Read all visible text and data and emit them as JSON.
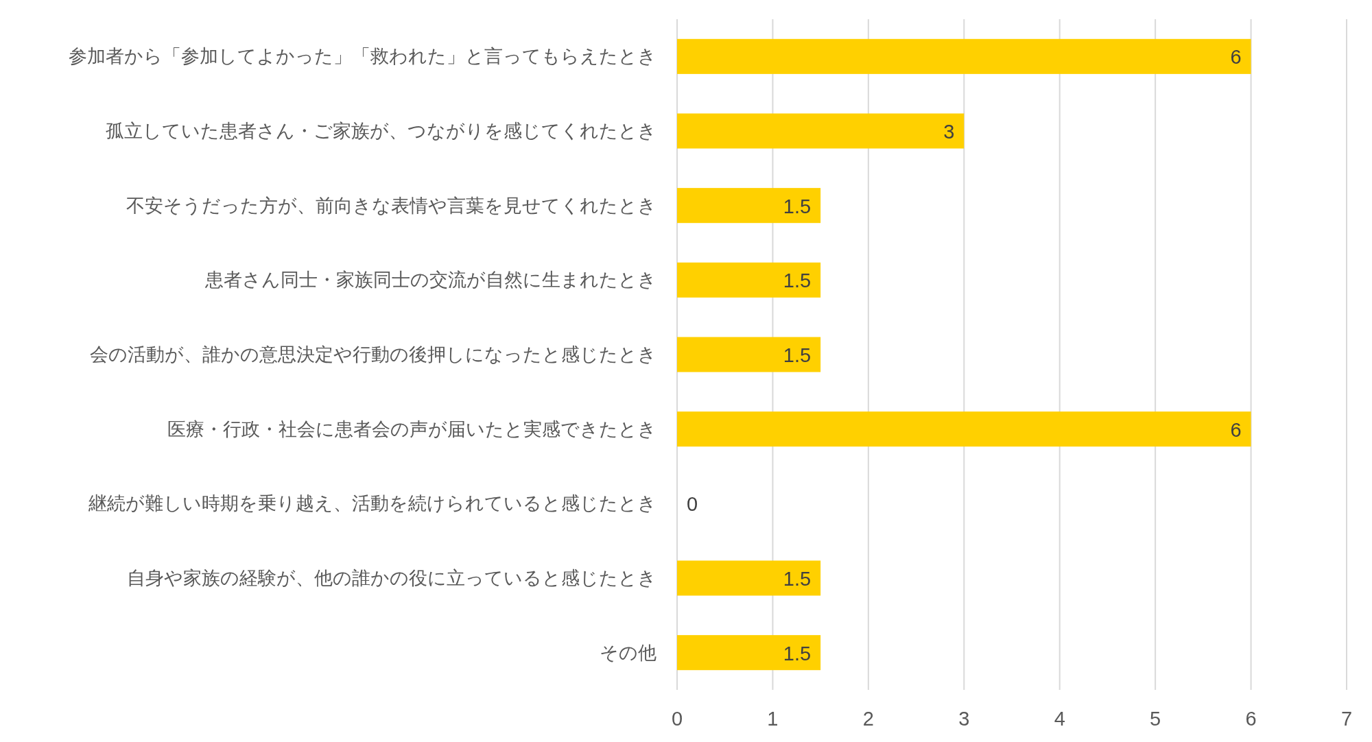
{
  "chart_data": {
    "type": "bar",
    "orientation": "horizontal",
    "categories": [
      "参加者から「参加してよかった」「救われた」と言ってもらえたとき",
      "孤立していた患者さん・ご家族が、つながりを感じてくれたとき",
      "不安そうだった方が、前向きな表情や言葉を見せてくれたとき",
      "患者さん同士・家族同士の交流が自然に生まれたとき",
      "会の活動が、誰かの意思決定や行動の後押しになったと感じたとき",
      "医療・行政・社会に患者会の声が届いたと実感できたとき",
      "継続が難しい時期を乗り越え、活動を続けられていると感じたとき",
      "自身や家族の経験が、他の誰かの役に立っていると感じたとき",
      "その他"
    ],
    "values": [
      6,
      3,
      1.5,
      1.5,
      1.5,
      6,
      0,
      1.5,
      1.5
    ],
    "color": "#ffd000",
    "xlim": [
      0,
      7
    ],
    "xticks": [
      0,
      1,
      2,
      3,
      4,
      5,
      6,
      7
    ],
    "grid": "x",
    "data_labels": true
  }
}
